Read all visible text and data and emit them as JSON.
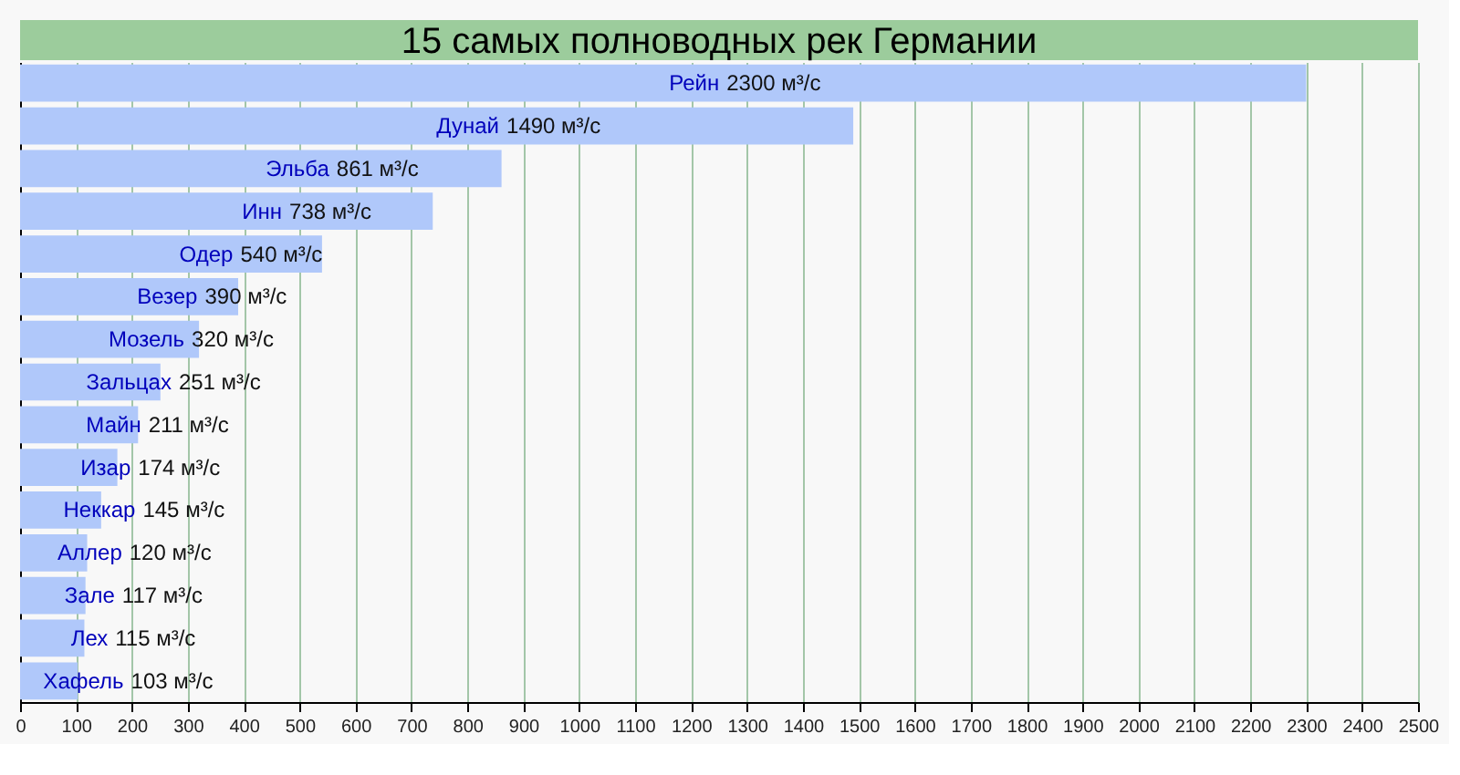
{
  "chart_data": {
    "type": "bar",
    "orientation": "horizontal",
    "title": "15 самых полноводных рек Германии",
    "categories": [
      "Рейн",
      "Дунай",
      "Эльба",
      "Инн",
      "Одер",
      "Везер",
      "Мозель",
      "Зальцах",
      "Майн",
      "Изар",
      "Неккар",
      "Аллер",
      "Зале",
      "Лех",
      "Хафель"
    ],
    "values": [
      2300,
      1490,
      861,
      738,
      540,
      390,
      320,
      251,
      211,
      174,
      145,
      120,
      117,
      115,
      103
    ],
    "value_labels": [
      "2300 м³/с",
      "1490 м³/с",
      "861 м³/с",
      "738 м³/с",
      "540 м³/с",
      "390 м³/с",
      "320 м³/с",
      "251 м³/с",
      "211 м³/с",
      "174 м³/с",
      "145 м³/с",
      "120 м³/с",
      "117 м³/с",
      "115 м³/с",
      "103 м³/с"
    ],
    "color": "#b0c8fa",
    "xlim": [
      0,
      2500
    ],
    "xticks": [
      0,
      100,
      200,
      300,
      400,
      500,
      600,
      700,
      800,
      900,
      1000,
      1100,
      1200,
      1300,
      1400,
      1500,
      1600,
      1700,
      1800,
      1900,
      2000,
      2100,
      2200,
      2300,
      2400,
      2500
    ],
    "grid": "x",
    "tick_labels": "x"
  }
}
